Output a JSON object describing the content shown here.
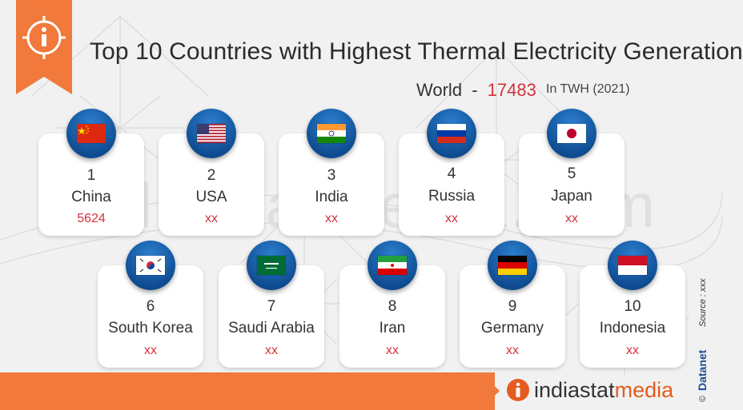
{
  "title": "Top 10 Countries with Highest Thermal Electricity Generation",
  "world": {
    "label": "World",
    "separator": "-",
    "value": "17483"
  },
  "unit": "In TWH (2021)",
  "countries": [
    {
      "rank": "1",
      "name": "China",
      "value": "5624",
      "flag": "china-flag-icon"
    },
    {
      "rank": "2",
      "name": "USA",
      "value": "xx",
      "flag": "usa-flag-icon"
    },
    {
      "rank": "3",
      "name": "India",
      "value": "xx",
      "flag": "india-flag-icon"
    },
    {
      "rank": "4",
      "name": "Russia",
      "value": "xx",
      "flag": "russia-flag-icon"
    },
    {
      "rank": "5",
      "name": "Japan",
      "value": "xx",
      "flag": "japan-flag-icon"
    },
    {
      "rank": "6",
      "name": "South Korea",
      "value": "xx",
      "flag": "south-korea-flag-icon"
    },
    {
      "rank": "7",
      "name": "Saudi Arabia",
      "value": "xx",
      "flag": "saudi-arabia-flag-icon"
    },
    {
      "rank": "8",
      "name": "Iran",
      "value": "xx",
      "flag": "iran-flag-icon"
    },
    {
      "rank": "9",
      "name": "Germany",
      "value": "xx",
      "flag": "germany-flag-icon"
    },
    {
      "rank": "10",
      "name": "Indonesia",
      "value": "xx",
      "flag": "indonesia-flag-icon"
    }
  ],
  "watermark": "indiastatmedia.com",
  "logo": {
    "icon": "info-icon",
    "part1": "indiastat",
    "part2": "media"
  },
  "credit": {
    "copyright": "©",
    "brand": "Datanet",
    "source": "Source : xxx"
  },
  "colors": {
    "accent": "#f0793b",
    "value_red": "#d4323b",
    "flag_circle": "#0e4a8e"
  }
}
